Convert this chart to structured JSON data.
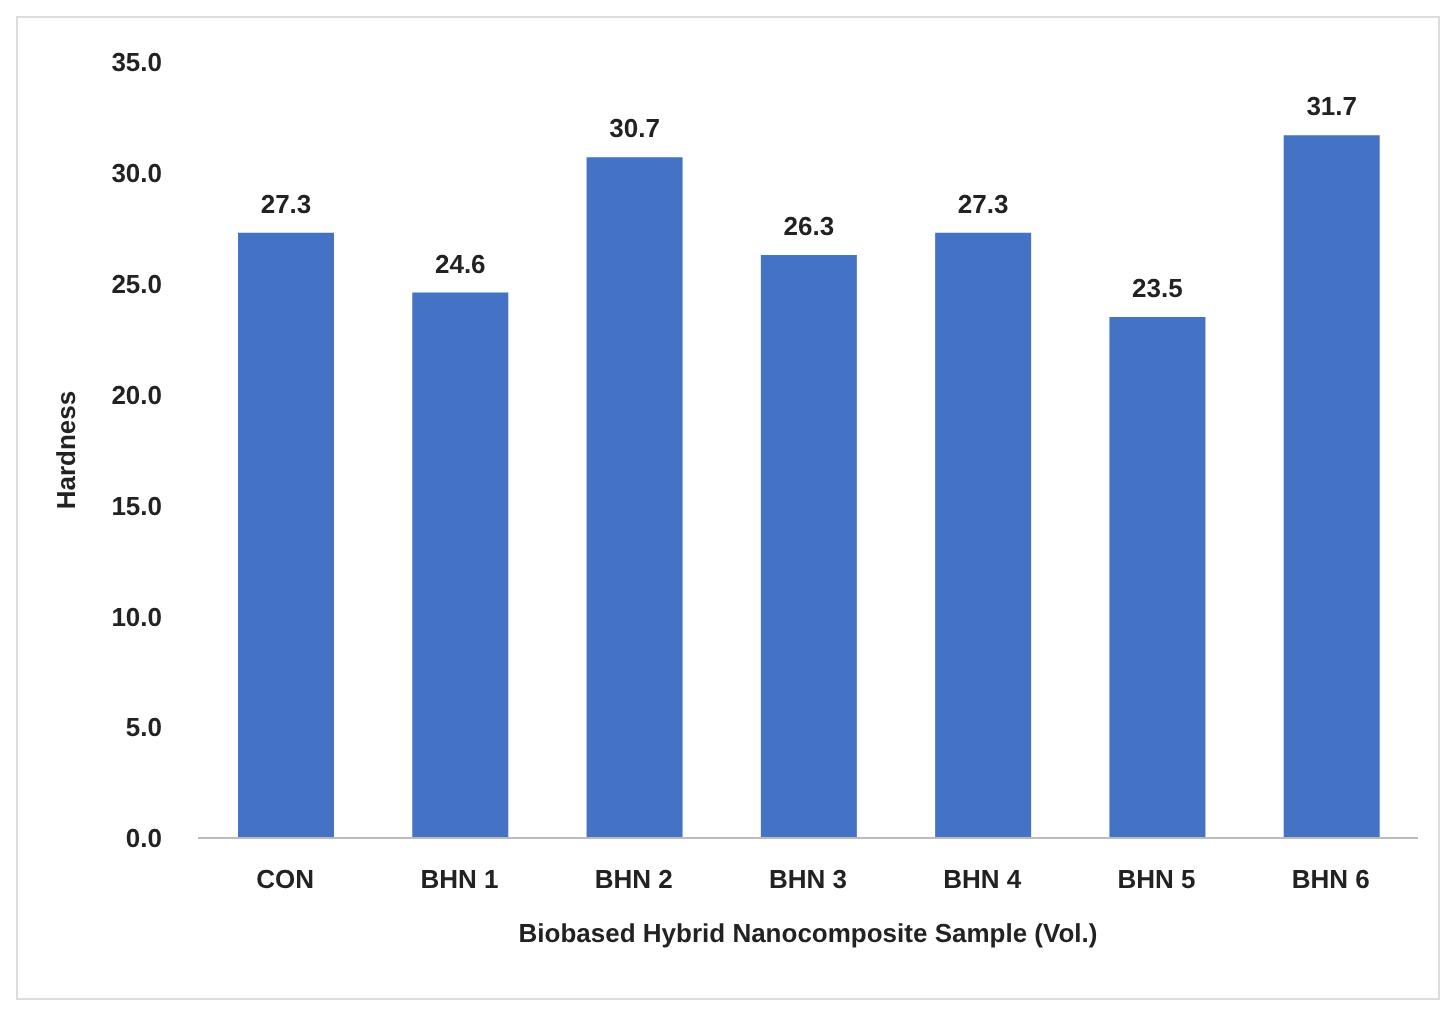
{
  "chart_data": {
    "type": "bar",
    "xlabel": "Biobased Hybrid Nanocomposite Sample (Vol.)",
    "ylabel": "Hardness",
    "categories": [
      "CON",
      "BHN 1",
      "BHN 2",
      "BHN 3",
      "BHN 4",
      "BHN 5",
      "BHN 6"
    ],
    "values": [
      27.3,
      24.6,
      30.7,
      26.3,
      27.3,
      23.5,
      31.7
    ],
    "color": "#4472c4",
    "ylim": [
      0,
      35
    ],
    "yticks": [
      {
        "value": 0,
        "label": "0.0"
      },
      {
        "value": 5,
        "label": "5.0"
      },
      {
        "value": 10,
        "label": "10.0"
      },
      {
        "value": 15,
        "label": "15.0"
      },
      {
        "value": 20,
        "label": "20.0"
      },
      {
        "value": 25,
        "label": "25.0"
      },
      {
        "value": 30,
        "label": "30.0"
      },
      {
        "value": 35,
        "label": "35.0"
      }
    ],
    "data_labels": true,
    "grid": false,
    "legend": false
  }
}
